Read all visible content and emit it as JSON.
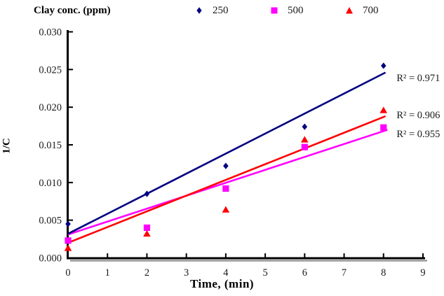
{
  "chart_data": {
    "type": "scatter",
    "title": "",
    "xlabel": "Time, (min)",
    "ylabel": "1/C",
    "legend_title": "Clay conc. (ppm)",
    "legend_position": "top",
    "grid": false,
    "xlim": [
      0,
      9
    ],
    "ylim": [
      0,
      0.03
    ],
    "x_ticks": [
      0,
      1,
      2,
      3,
      4,
      5,
      6,
      7,
      8,
      9
    ],
    "y_ticks": [
      0.0,
      0.005,
      0.01,
      0.015,
      0.02,
      0.025,
      0.03
    ],
    "x": [
      0,
      2,
      4,
      6,
      8
    ],
    "series": [
      {
        "name": "250",
        "marker": "diamond",
        "color": "#000080",
        "values": [
          0.0045,
          0.0085,
          0.0122,
          0.0174,
          0.0255
        ],
        "trendline": {
          "x": [
            0,
            8.05
          ],
          "y": [
            0.0032,
            0.0246
          ]
        },
        "r2": {
          "label": "R² = 0.971",
          "x": 8.33,
          "y": 0.0239
        }
      },
      {
        "name": "500",
        "marker": "square",
        "color": "#FF00FF",
        "values": [
          0.0023,
          0.004,
          0.0092,
          0.0147,
          0.0173
        ],
        "trendline": {
          "x": [
            0,
            8.1
          ],
          "y": [
            0.0031,
            0.017
          ]
        },
        "r2": {
          "label": "R² = 0.955",
          "x": 8.33,
          "y": 0.0165
        }
      },
      {
        "name": "700",
        "marker": "triangle",
        "color": "#FF0000",
        "values": [
          0.0013,
          0.0032,
          0.0064,
          0.0157,
          0.0196
        ],
        "trendline": {
          "x": [
            0,
            8.05
          ],
          "y": [
            0.002,
            0.0188
          ]
        },
        "r2": {
          "label": "R² = 0.906",
          "x": 8.33,
          "y": 0.019
        }
      }
    ]
  }
}
